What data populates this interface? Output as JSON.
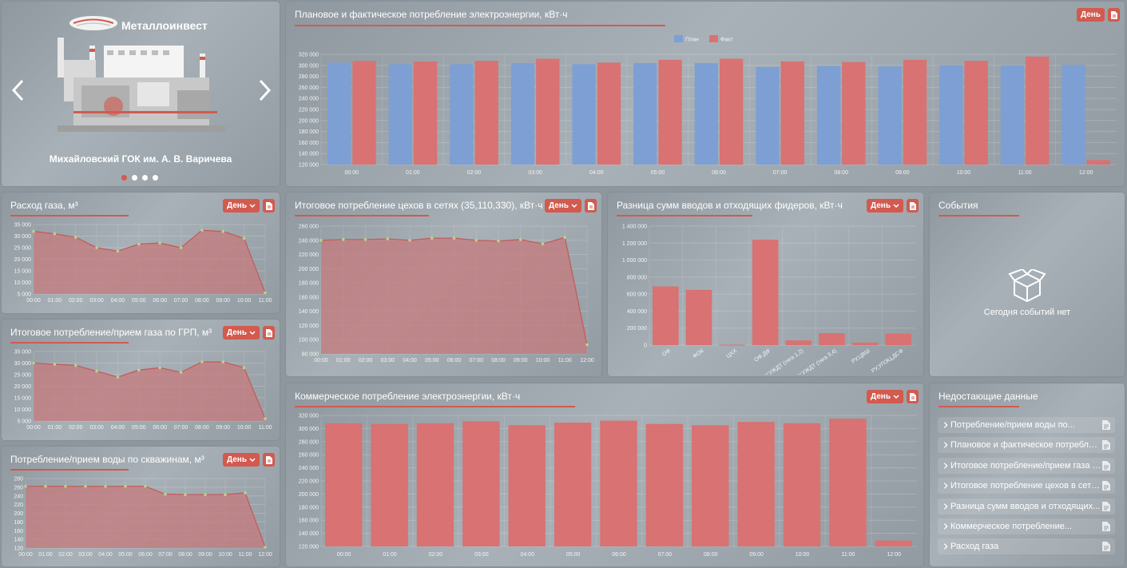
{
  "colors": {
    "plan": "#7d9fd4",
    "fact": "#d97272",
    "accent": "#d25a4e",
    "area_fill": "#c67a7c",
    "point": "#b8d48a"
  },
  "common": {
    "day_label": "День"
  },
  "carousel": {
    "brand": "Металлоинвест",
    "caption": "Михайловский ГОК им. А. В. Варичева",
    "slides": 4,
    "active": 0
  },
  "plan_fact": {
    "title": "Плановое и фактическое потребление электроэнергии, кВт·ч",
    "chart_data": {
      "type": "bar",
      "categories": [
        "00:00",
        "01:00",
        "02:00",
        "03:00",
        "04:00",
        "05:00",
        "06:00",
        "07:00",
        "08:00",
        "09:00",
        "10:00",
        "11:00",
        "12:00"
      ],
      "series": [
        {
          "name": "План",
          "values": [
            305000,
            302000,
            302000,
            304000,
            302000,
            304000,
            304000,
            297000,
            299000,
            298000,
            300000,
            300000,
            301000
          ]
        },
        {
          "name": "Факт",
          "values": [
            308000,
            307000,
            308000,
            312000,
            305000,
            310000,
            312000,
            307000,
            306000,
            310000,
            308000,
            316000,
            128000
          ]
        }
      ],
      "ylim": [
        120000,
        320000
      ],
      "yticks": [
        "120 000",
        "140 000",
        "160 000",
        "180 000",
        "200 000",
        "220 000",
        "240 000",
        "260 000",
        "280 000",
        "300 000",
        "320 000"
      ],
      "legend": "top-center"
    }
  },
  "gas": {
    "title": "Расход газа, м³",
    "chart_data": {
      "type": "area",
      "categories": [
        "00:00",
        "01:00",
        "02:00",
        "03:00",
        "04:00",
        "05:00",
        "06:00",
        "07:00",
        "08:00",
        "09:00",
        "10:00",
        "11:00"
      ],
      "values": [
        32000,
        31000,
        29500,
        25000,
        23500,
        26500,
        27000,
        25000,
        32500,
        32000,
        29000,
        5500
      ],
      "ylim": [
        5000,
        35000
      ],
      "yticks": [
        "5 000",
        "10 000",
        "15 000",
        "20 000",
        "25 000",
        "30 000",
        "35 000"
      ]
    }
  },
  "gas_grp": {
    "title": "Итоговое потребление/прием газа по ГРП, м³",
    "chart_data": {
      "type": "area",
      "categories": [
        "00:00",
        "01:00",
        "02:00",
        "03:00",
        "04:00",
        "05:00",
        "06:00",
        "07:00",
        "08:00",
        "09:00",
        "10:00",
        "11:00"
      ],
      "values": [
        30000,
        29500,
        29000,
        26500,
        24000,
        27000,
        28000,
        26000,
        30500,
        30500,
        28000,
        6000
      ],
      "ylim": [
        5000,
        35000
      ],
      "yticks": [
        "5 000",
        "10 000",
        "15 000",
        "20 000",
        "25 000",
        "30 000",
        "35 000"
      ]
    }
  },
  "water": {
    "title": "Потребление/прием воды по скважинам, м³",
    "chart_data": {
      "type": "area",
      "categories": [
        "00:00",
        "01:00",
        "02:00",
        "03:00",
        "04:00",
        "05:00",
        "06:00",
        "07:00",
        "08:00",
        "09:00",
        "10:00",
        "11:00",
        "12:00"
      ],
      "values": [
        262,
        262,
        262,
        262,
        262,
        262,
        262,
        244,
        243,
        243,
        243,
        247,
        122
      ],
      "ylim": [
        120,
        280
      ],
      "yticks": [
        "120",
        "140",
        "160",
        "180",
        "200",
        "220",
        "240",
        "260",
        "280"
      ]
    }
  },
  "shops": {
    "title": "Итоговое потребление цехов в сетях (35,110,330), кВт·ч",
    "chart_data": {
      "type": "area",
      "categories": [
        "00:00",
        "01:00",
        "02:00",
        "03:00",
        "04:00",
        "05:00",
        "06:00",
        "07:00",
        "08:00",
        "09:00",
        "10:00",
        "11:00",
        "12:00"
      ],
      "values": [
        240000,
        241000,
        241000,
        242000,
        240000,
        243000,
        243000,
        240000,
        239000,
        241000,
        235000,
        244000,
        93000
      ],
      "ylim": [
        80000,
        260000
      ],
      "yticks": [
        "80 000",
        "100 000",
        "120 000",
        "140 000",
        "160 000",
        "180 000",
        "200 000",
        "220 000",
        "240 000",
        "260 000"
      ]
    }
  },
  "diff": {
    "title": "Разница сумм вводов и отходящих фидеров, кВт·ч",
    "chart_data": {
      "type": "bar",
      "categories": [
        "ОФ",
        "ФОК",
        "ЦХХ",
        "ОФ,ДФ",
        "РУ,УЖДТ (тяга 1,2)",
        "РУ,УЖДТ (тяга 3,4)",
        "РУ,ЦВШ",
        "РУ,УПЭЦ,ДСФ"
      ],
      "values": [
        690000,
        650000,
        5000,
        1240000,
        55000,
        140000,
        30000,
        135000
      ],
      "ylim": [
        0,
        1400000
      ],
      "yticks": [
        "0",
        "200 000",
        "400 000",
        "600 000",
        "800 000",
        "1 000 000",
        "1 200 000",
        "1 400 000"
      ]
    }
  },
  "events": {
    "title": "События",
    "empty": "Сегодня событий нет"
  },
  "commercial": {
    "title": "Коммерческое потребление электроэнергии, кВт·ч",
    "chart_data": {
      "type": "bar",
      "categories": [
        "00:00",
        "01:00",
        "02:00",
        "03:00",
        "04:00",
        "05:00",
        "06:00",
        "07:00",
        "08:00",
        "09:00",
        "10:00",
        "11:00",
        "12:00"
      ],
      "values": [
        308000,
        307000,
        308000,
        311000,
        305000,
        309000,
        312000,
        307000,
        305000,
        310000,
        308000,
        315000,
        129000
      ],
      "ylim": [
        120000,
        320000
      ],
      "yticks": [
        "120 000",
        "140 000",
        "160 000",
        "180 000",
        "200 000",
        "220 000",
        "240 000",
        "260 000",
        "280 000",
        "300 000",
        "320 000"
      ]
    }
  },
  "missing": {
    "title": "Недостающие данные",
    "items": [
      "Потребление/прием воды по...",
      "Плановое и фактическое потреблени...",
      "Итоговое потребление/прием газа по...",
      "Итоговое потребление цехов в сетях...",
      "Разница сумм вводов и отходящих...",
      "Коммерческое потребление...",
      "Расход газа"
    ]
  }
}
